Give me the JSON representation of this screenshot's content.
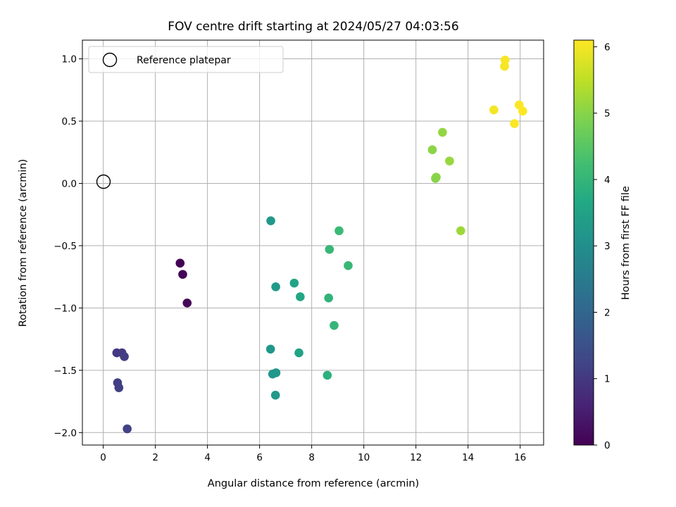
{
  "chart_data": {
    "type": "scatter",
    "title": "FOV centre drift starting at 2024/05/27 04:03:56",
    "xlabel": "Angular distance from reference (arcmin)",
    "ylabel": "Rotation from reference (arcmin)",
    "xlim": [
      -0.8,
      16.9
    ],
    "ylim": [
      -2.1,
      1.15
    ],
    "xticks": [
      0,
      2,
      4,
      6,
      8,
      10,
      12,
      14,
      16
    ],
    "xtick_labels": [
      "0",
      "2",
      "4",
      "6",
      "8",
      "10",
      "12",
      "14",
      "16"
    ],
    "yticks": [
      -2.0,
      -1.5,
      -1.0,
      -0.5,
      0.0,
      0.5,
      1.0
    ],
    "ytick_labels": [
      "−2.0",
      "−1.5",
      "−1.0",
      "−0.5",
      "0.0",
      "0.5",
      "1.0"
    ],
    "grid": true,
    "legend": {
      "placement": "top-left",
      "entries": [
        {
          "label": "Reference platepar",
          "marker": "open-circle"
        }
      ]
    },
    "reference_point": {
      "x": 0.0,
      "y": 0.0
    },
    "colorbar": {
      "label": "Hours from first FF file",
      "colormap": "viridis",
      "range": [
        0,
        6.1
      ],
      "ticks": [
        0,
        1,
        2,
        3,
        4,
        5,
        6
      ],
      "tick_labels": [
        "0",
        "1",
        "2",
        "3",
        "4",
        "5",
        "6"
      ]
    },
    "points": [
      {
        "x": 2.95,
        "y": -0.64,
        "hours": 0.02
      },
      {
        "x": 3.05,
        "y": -0.73,
        "hours": 0.05
      },
      {
        "x": 3.22,
        "y": -0.96,
        "hours": 0.08
      },
      {
        "x": 0.52,
        "y": -1.36,
        "hours": 1.0
      },
      {
        "x": 0.72,
        "y": -1.36,
        "hours": 1.05
      },
      {
        "x": 0.81,
        "y": -1.39,
        "hours": 1.08
      },
      {
        "x": 0.55,
        "y": -1.6,
        "hours": 1.1
      },
      {
        "x": 0.6,
        "y": -1.64,
        "hours": 1.15
      },
      {
        "x": 0.92,
        "y": -1.97,
        "hours": 1.2
      },
      {
        "x": 6.43,
        "y": -0.3,
        "hours": 3.25
      },
      {
        "x": 6.62,
        "y": -0.83,
        "hours": 3.3
      },
      {
        "x": 6.42,
        "y": -1.33,
        "hours": 3.2
      },
      {
        "x": 6.5,
        "y": -1.53,
        "hours": 3.15
      },
      {
        "x": 6.63,
        "y": -1.52,
        "hours": 3.2
      },
      {
        "x": 6.61,
        "y": -1.7,
        "hours": 3.25
      },
      {
        "x": 7.33,
        "y": -0.8,
        "hours": 3.55
      },
      {
        "x": 7.56,
        "y": -0.91,
        "hours": 3.6
      },
      {
        "x": 7.51,
        "y": -1.36,
        "hours": 3.5
      },
      {
        "x": 8.68,
        "y": -0.53,
        "hours": 4.05
      },
      {
        "x": 9.05,
        "y": -0.38,
        "hours": 4.1
      },
      {
        "x": 9.4,
        "y": -0.66,
        "hours": 4.05
      },
      {
        "x": 8.65,
        "y": -0.92,
        "hours": 3.95
      },
      {
        "x": 8.86,
        "y": -1.14,
        "hours": 4.0
      },
      {
        "x": 8.6,
        "y": -1.54,
        "hours": 3.85
      },
      {
        "x": 12.63,
        "y": 0.27,
        "hours": 5.05
      },
      {
        "x": 13.02,
        "y": 0.41,
        "hours": 5.1
      },
      {
        "x": 13.29,
        "y": 0.18,
        "hours": 5.15
      },
      {
        "x": 12.78,
        "y": 0.05,
        "hours": 5.05
      },
      {
        "x": 12.75,
        "y": 0.04,
        "hours": 5.0
      },
      {
        "x": 13.72,
        "y": -0.38,
        "hours": 5.2
      },
      {
        "x": 15.42,
        "y": 0.99,
        "hours": 6.05
      },
      {
        "x": 15.4,
        "y": 0.94,
        "hours": 6.03
      },
      {
        "x": 14.99,
        "y": 0.59,
        "hours": 6.0
      },
      {
        "x": 15.96,
        "y": 0.63,
        "hours": 6.08
      },
      {
        "x": 16.1,
        "y": 0.58,
        "hours": 6.1
      },
      {
        "x": 15.78,
        "y": 0.48,
        "hours": 6.07
      }
    ]
  }
}
